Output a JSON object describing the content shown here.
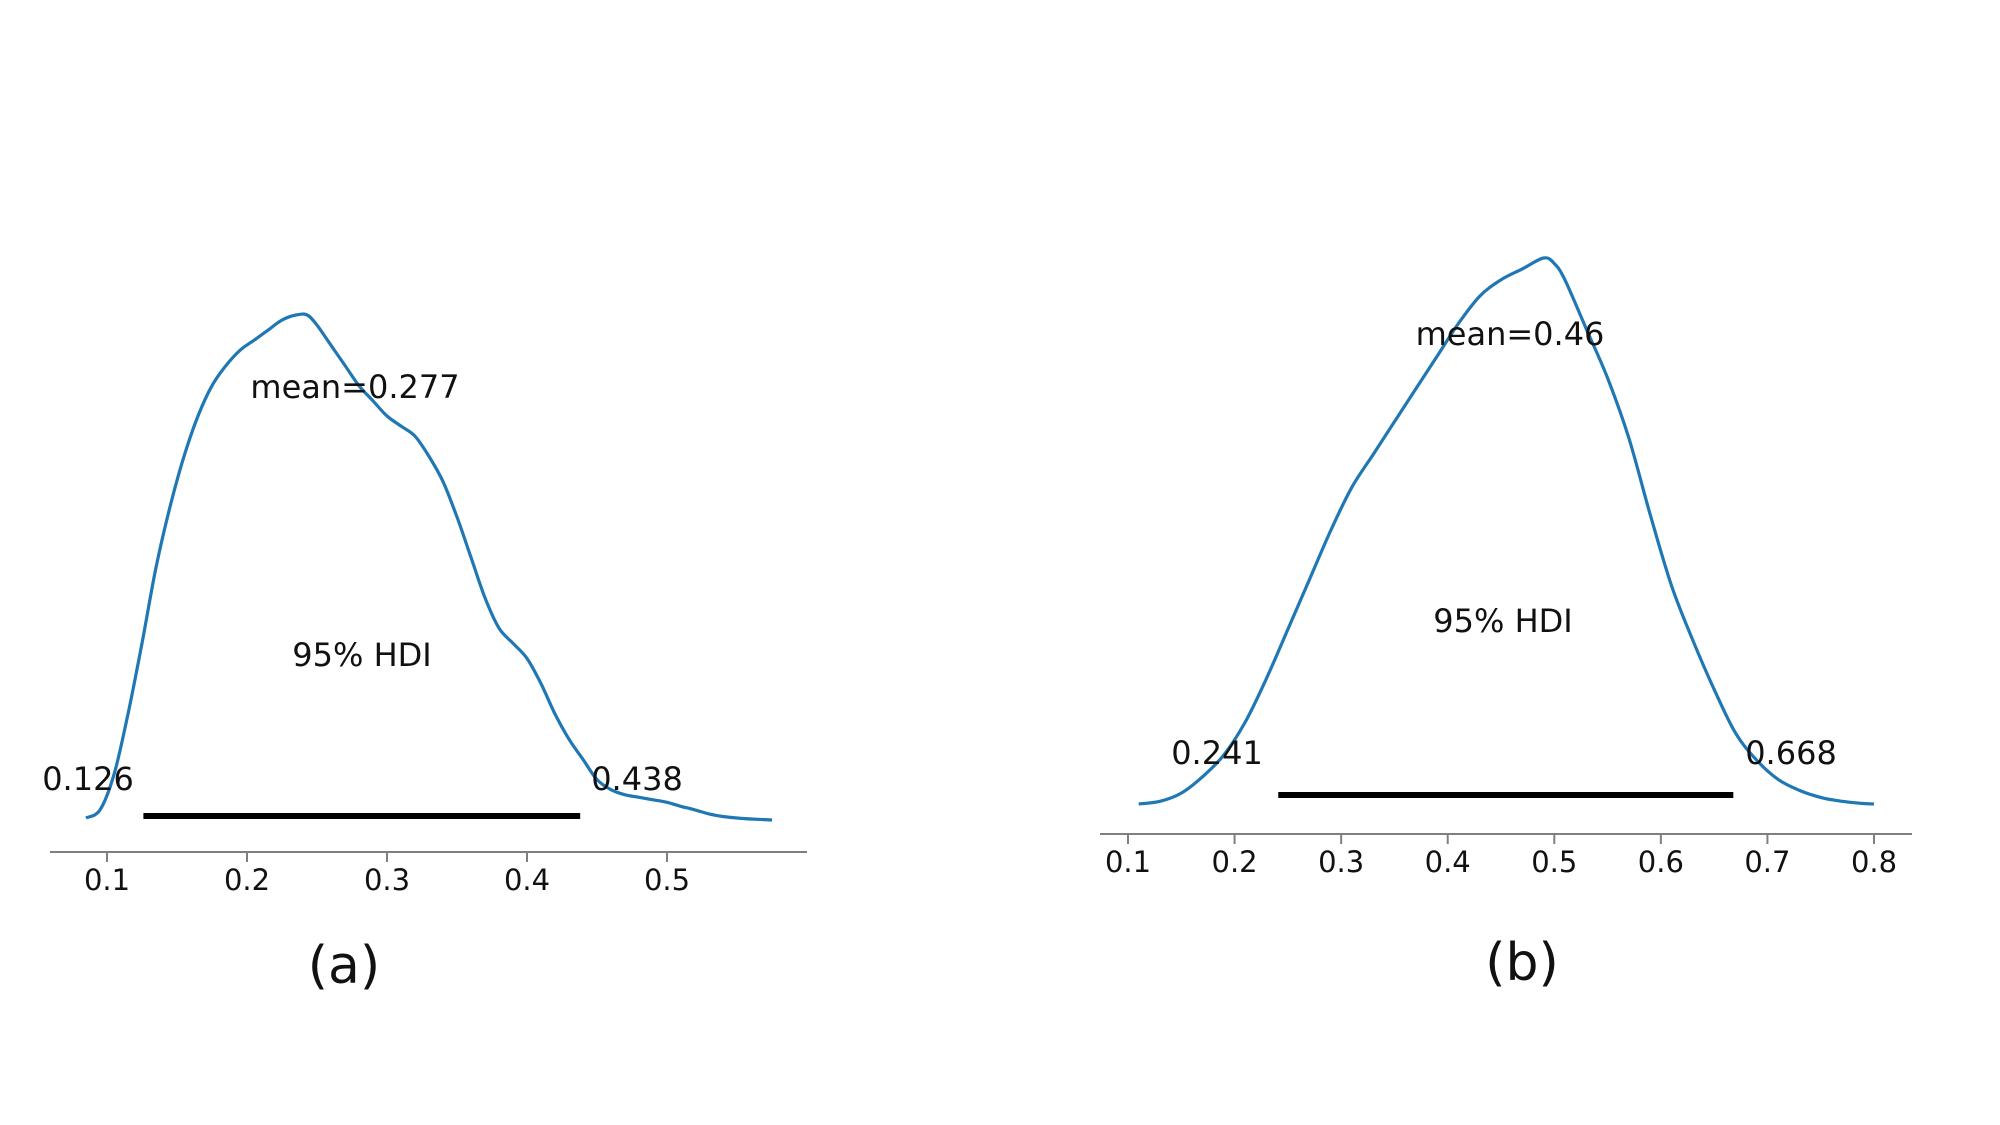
{
  "chart_data": [
    {
      "type": "area",
      "caption": "(a)",
      "xlim": [
        0.08,
        0.58
      ],
      "xticks": [
        "0.1",
        "0.2",
        "0.3",
        "0.4",
        "0.5"
      ],
      "xtick_values": [
        0.1,
        0.2,
        0.3,
        0.4,
        0.5
      ],
      "mean_label": "mean=0.277",
      "hdi_label": "95% HDI",
      "hdi_low_label": "0.126",
      "hdi_high_label": "0.438",
      "hdi": [
        0.126,
        0.438
      ],
      "line_color": "#1f77b4",
      "density_x": [
        0.085,
        0.095,
        0.105,
        0.115,
        0.125,
        0.135,
        0.145,
        0.155,
        0.165,
        0.175,
        0.185,
        0.195,
        0.205,
        0.215,
        0.225,
        0.235,
        0.243,
        0.25,
        0.26,
        0.27,
        0.28,
        0.29,
        0.3,
        0.31,
        0.32,
        0.33,
        0.34,
        0.35,
        0.36,
        0.37,
        0.38,
        0.39,
        0.4,
        0.41,
        0.42,
        0.43,
        0.44,
        0.45,
        0.46,
        0.47,
        0.48,
        0.49,
        0.5,
        0.51,
        0.52,
        0.53,
        0.54,
        0.55,
        0.56,
        0.575
      ],
      "density_y": [
        0.004,
        0.02,
        0.09,
        0.21,
        0.35,
        0.5,
        0.62,
        0.72,
        0.8,
        0.86,
        0.9,
        0.93,
        0.95,
        0.97,
        0.99,
        1.0,
        1.0,
        0.98,
        0.94,
        0.9,
        0.86,
        0.83,
        0.8,
        0.78,
        0.76,
        0.72,
        0.67,
        0.6,
        0.52,
        0.44,
        0.38,
        0.35,
        0.32,
        0.27,
        0.21,
        0.16,
        0.12,
        0.08,
        0.06,
        0.05,
        0.045,
        0.04,
        0.035,
        0.027,
        0.02,
        0.012,
        0.007,
        0.004,
        0.002,
        0.0
      ]
    },
    {
      "type": "area",
      "caption": "(b)",
      "xlim": [
        0.08,
        0.83
      ],
      "xticks": [
        "0.1",
        "0.2",
        "0.3",
        "0.4",
        "0.5",
        "0.6",
        "0.7",
        "0.8"
      ],
      "xtick_values": [
        0.1,
        0.2,
        0.3,
        0.4,
        0.5,
        0.6,
        0.7,
        0.8
      ],
      "mean_label": "mean=0.46",
      "hdi_label": "95% HDI",
      "hdi_low_label": "0.241",
      "hdi_high_label": "0.668",
      "hdi": [
        0.241,
        0.668
      ],
      "line_color": "#1f77b4",
      "density_x": [
        0.11,
        0.13,
        0.15,
        0.17,
        0.19,
        0.21,
        0.23,
        0.25,
        0.27,
        0.29,
        0.31,
        0.33,
        0.35,
        0.37,
        0.39,
        0.41,
        0.43,
        0.45,
        0.47,
        0.49,
        0.5,
        0.51,
        0.53,
        0.55,
        0.57,
        0.59,
        0.61,
        0.63,
        0.65,
        0.67,
        0.69,
        0.71,
        0.73,
        0.75,
        0.77,
        0.79,
        0.8
      ],
      "density_y": [
        0.0,
        0.005,
        0.02,
        0.05,
        0.09,
        0.15,
        0.23,
        0.32,
        0.41,
        0.5,
        0.58,
        0.64,
        0.7,
        0.76,
        0.82,
        0.88,
        0.93,
        0.96,
        0.98,
        1.0,
        0.99,
        0.96,
        0.87,
        0.78,
        0.67,
        0.53,
        0.4,
        0.3,
        0.21,
        0.13,
        0.08,
        0.045,
        0.025,
        0.012,
        0.005,
        0.001,
        0.0
      ]
    }
  ]
}
